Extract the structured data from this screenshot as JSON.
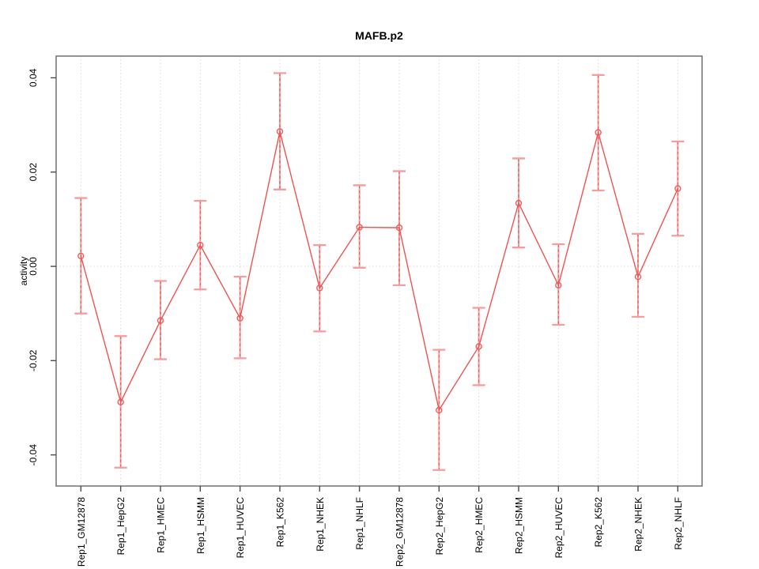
{
  "page": {
    "background": "#ffffff"
  },
  "chart_data": {
    "type": "line",
    "title": "MAFB.p2",
    "ylabel": "activity",
    "xlabel": "",
    "categories": [
      "Rep1_GM12878",
      "Rep1_HepG2",
      "Rep1_HMEC",
      "Rep1_HSMM",
      "Rep1_HUVEC",
      "Rep1_K562",
      "Rep1_NHEK",
      "Rep1_NHLF",
      "Rep2_GM12878",
      "Rep2_HepG2",
      "Rep2_HMEC",
      "Rep2_HSMM",
      "Rep2_HUVEC",
      "Rep2_K562",
      "Rep2_NHEK",
      "Rep2_NHLF"
    ],
    "series": [
      {
        "name": "activity",
        "marker": "open-circle",
        "values": [
          0.0022,
          -0.0288,
          -0.0115,
          0.0045,
          -0.011,
          0.0286,
          -0.0046,
          0.0083,
          0.0082,
          -0.0305,
          -0.017,
          0.0134,
          -0.004,
          0.0284,
          -0.0022,
          0.0165
        ],
        "upper": [
          0.0145,
          -0.0148,
          -0.0031,
          0.0139,
          -0.0022,
          0.041,
          0.0045,
          0.0172,
          0.0202,
          -0.0177,
          -0.0088,
          0.0229,
          0.0047,
          0.0406,
          0.0069,
          0.0265
        ],
        "lower": [
          -0.01,
          -0.0427,
          -0.0197,
          -0.0049,
          -0.0195,
          0.0163,
          -0.0138,
          -0.0003,
          -0.004,
          -0.0432,
          -0.0252,
          0.004,
          -0.0124,
          0.0161,
          -0.0107,
          0.0065
        ]
      }
    ],
    "ylim": [
      -0.0466,
      0.0446
    ],
    "yticks": [
      {
        "value": 0.04,
        "label": "0.04"
      },
      {
        "value": 0.02,
        "label": "0.02"
      },
      {
        "value": 0.0,
        "label": "0.00"
      },
      {
        "value": -0.02,
        "label": "-0.02"
      },
      {
        "value": -0.04,
        "label": "-0.04"
      }
    ],
    "grid": {
      "vertical": "dotted",
      "zero_line": "dotted",
      "horizontal": "zero-only"
    },
    "legend": null,
    "colors": {
      "line": "#ef5350",
      "point": "#ee5c5c",
      "error_bar": "#f59c9c",
      "error_bar_dash": "#e85252",
      "grid": "#d9d9d9",
      "zero_line": "#dcdcdc",
      "axis_box": "#666666",
      "tick": "#4a4a4a",
      "text": "#000000"
    }
  }
}
